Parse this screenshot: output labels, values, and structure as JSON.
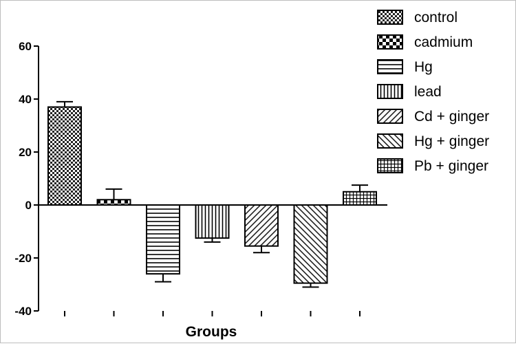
{
  "chart_data": {
    "type": "bar",
    "title": "",
    "xlabel": "Groups",
    "ylabel": "",
    "ylim": [
      -40,
      60
    ],
    "yticks": [
      60,
      40,
      20,
      0,
      -20,
      -40
    ],
    "grid": false,
    "legend_position": "top-right",
    "categories": [
      "control",
      "cadmium",
      "Hg",
      "lead",
      "Cd + ginger",
      "Hg + ginger",
      "Pb + ginger"
    ],
    "values": [
      37,
      2,
      -26,
      -12.5,
      -15.5,
      -29.5,
      5
    ],
    "error_bars": [
      2,
      4,
      3,
      1.5,
      2.5,
      1.5,
      2.5
    ],
    "patterns": [
      "checker-fine",
      "checker-coarse",
      "horizontal-lines",
      "vertical-lines",
      "diagonal-up",
      "diagonal-down",
      "grid"
    ],
    "colors": {
      "bar_stroke": "#000000",
      "axis": "#000000",
      "text": "#000000",
      "background": "#ffffff"
    }
  }
}
